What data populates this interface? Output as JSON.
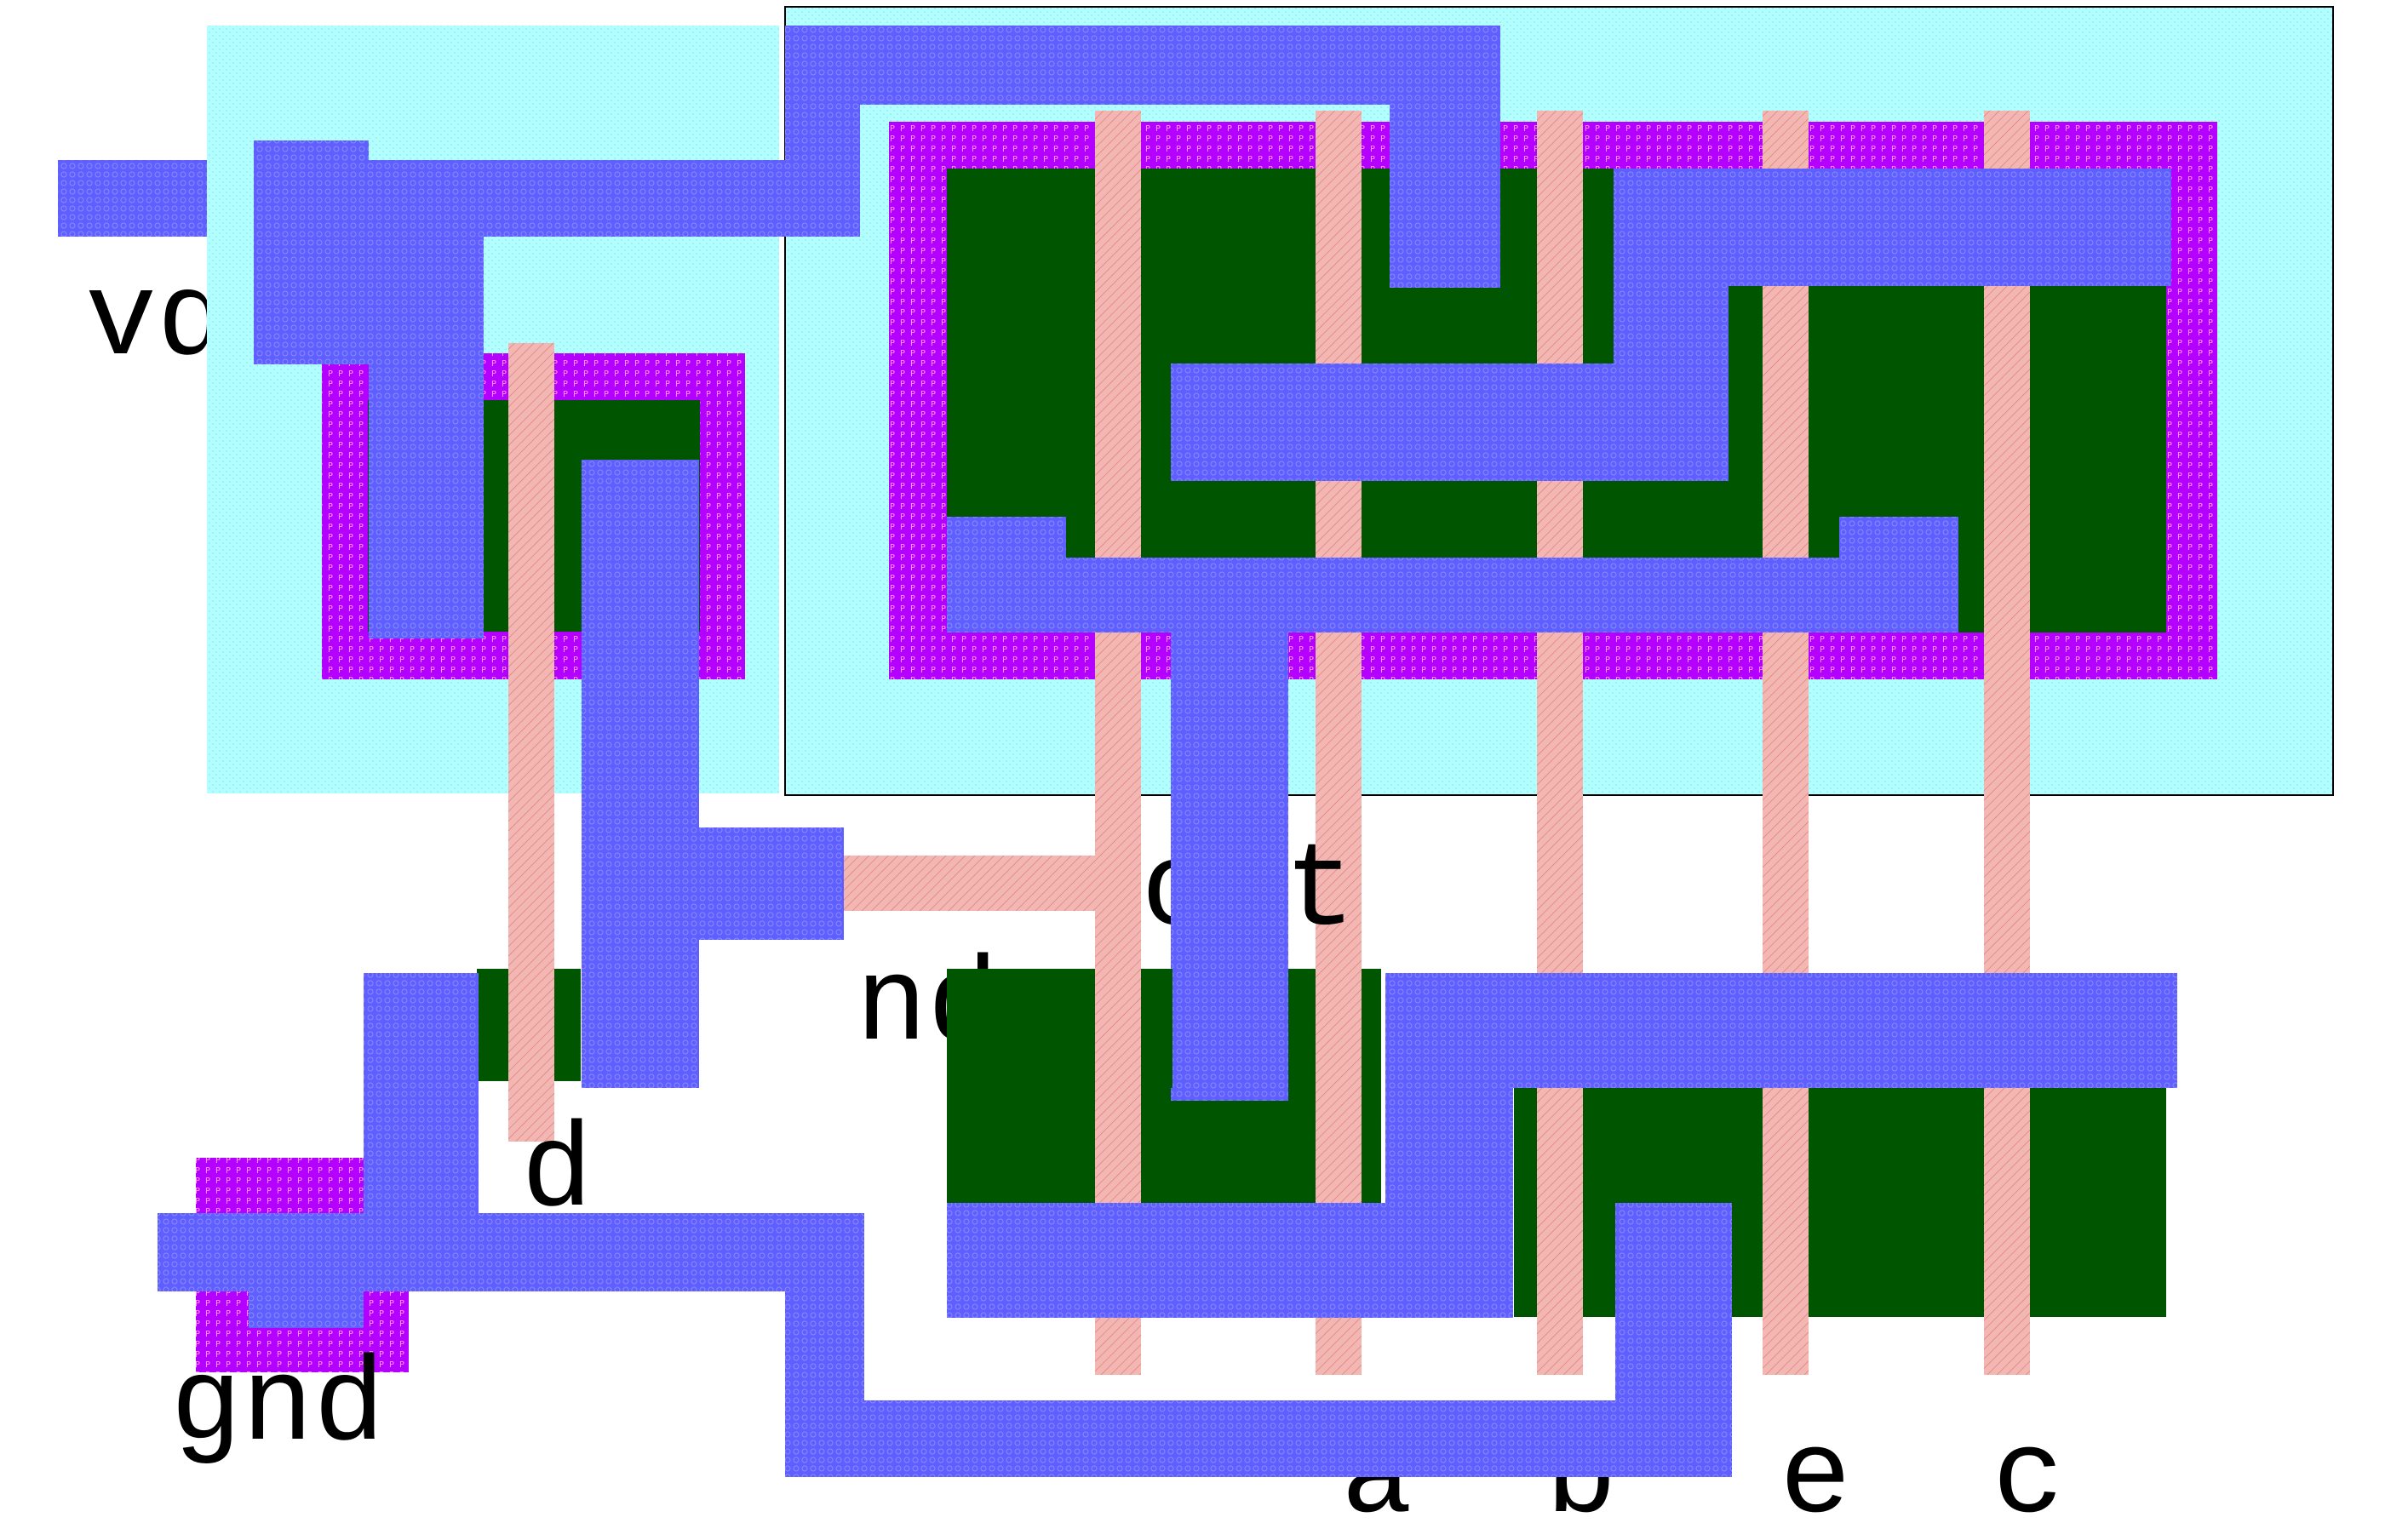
{
  "labels": {
    "vdd": "vdd",
    "gnd": "gnd",
    "out": "out",
    "nd": "nd",
    "d": "d",
    "a": "a",
    "b": "b",
    "e": "e",
    "c": "c"
  },
  "layers": {
    "nwell": {
      "name": "nwell",
      "color": "#b3ffff"
    },
    "pselect": {
      "name": "pselect",
      "color": "#b400ff"
    },
    "active": {
      "name": "active",
      "color": "#005500"
    },
    "poly": {
      "name": "poly",
      "color": "#f2b7b3"
    },
    "metal1": {
      "name": "metal1",
      "color": "#5959ff"
    }
  }
}
